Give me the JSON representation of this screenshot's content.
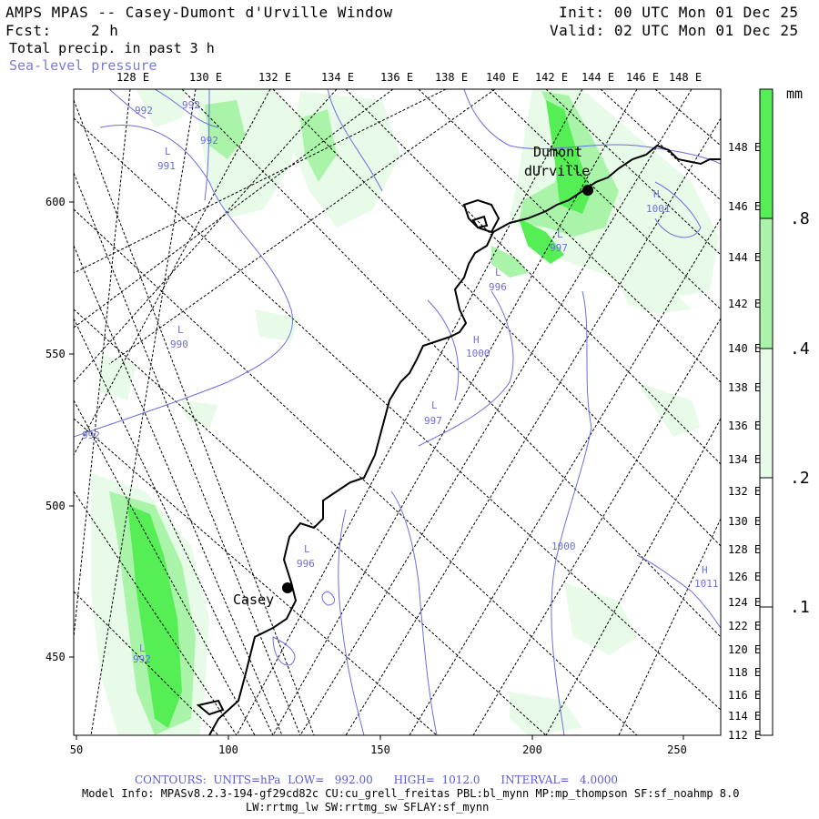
{
  "header": {
    "title": "AMPS MPAS -- Casey-Dumont d'Urville Window",
    "fcst_label": "Fcst:",
    "fcst_value": "2 h",
    "field": "Total precip. in past 3 h",
    "overlay": "Sea-level pressure",
    "init": "Init: 00 UTC Mon 01 Dec 25",
    "valid": "Valid: 02 UTC Mon 01 Dec 25"
  },
  "map": {
    "top_lon_labels": [
      "128 E",
      "130 E",
      "132 E",
      "134 E",
      "136 E",
      "138 E",
      "140 E",
      "142 E",
      "144 E",
      "146 E",
      "148 E"
    ],
    "right_lat_labels": [
      "148 E",
      "146 E",
      "144 E",
      "142 E",
      "140 E",
      "138 E",
      "136 E",
      "134 E",
      "132 E",
      "130 E",
      "128 E",
      "126 E",
      "124 E",
      "122 E",
      "120 E",
      "118 E",
      "116 E",
      "114 E",
      "112 E"
    ],
    "left_axis_labels": [
      "600",
      "550",
      "500",
      "450"
    ],
    "bottom_axis_labels": [
      "50",
      "100",
      "150",
      "200",
      "250"
    ],
    "stations": [
      {
        "name": "Casey"
      },
      {
        "name": "Dumont dUrville",
        "name_line1": "Dumont",
        "name_line2": "dUrville"
      }
    ],
    "pressure_labels": [
      {
        "marker": "",
        "value": "992"
      },
      {
        "marker": "",
        "value": "992"
      },
      {
        "marker": "",
        "value": "992"
      },
      {
        "marker": "L",
        "value": "991"
      },
      {
        "marker": "L",
        "value": "990"
      },
      {
        "marker": "",
        "value": "992"
      },
      {
        "marker": "L",
        "value": "997"
      },
      {
        "marker": "L",
        "value": "996"
      },
      {
        "marker": "H",
        "value": "1001"
      },
      {
        "marker": "H",
        "value": "1000"
      },
      {
        "marker": "L",
        "value": "997"
      },
      {
        "marker": "L",
        "value": "996"
      },
      {
        "marker": "L",
        "value": "992"
      },
      {
        "marker": "",
        "value": "1000"
      },
      {
        "marker": "H",
        "value": "1011"
      }
    ]
  },
  "colorbar": {
    "unit": "mm",
    "labels": [
      ".8",
      ".4",
      ".2",
      ".1"
    ],
    "colors": [
      "#55ee55",
      "#aaf4aa",
      "#e8fbe8",
      "#ffffff"
    ]
  },
  "footer": {
    "contours": "CONTOURS:  UNITS=hPa  LOW=   992.00      HIGH=  1012.0      INTERVAL=   4.0000",
    "model_info": "Model Info: MPASv8.2.3-194-gf29cd82c CU:cu_grell_freitas PBL:bl_mynn MP:mp_thompson SF:sf_noahmp 8.0",
    "schemes": "LW:rrtmg_lw SW:rrtmg_sw SFLAY:sf_mynn"
  }
}
